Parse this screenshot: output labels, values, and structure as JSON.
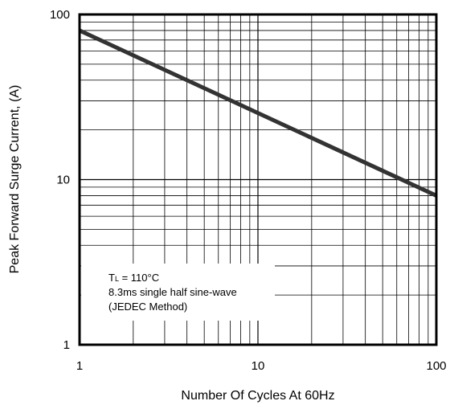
{
  "chart_data": {
    "type": "line",
    "xlabel": "Number Of Cycles At 60Hz",
    "ylabel": "Peak Forward Surge Current, (A)",
    "x_scale": "log",
    "y_scale": "log",
    "xlim": [
      1,
      100
    ],
    "ylim": [
      1,
      100
    ],
    "x_ticks": [
      "1",
      "10",
      "100"
    ],
    "y_ticks": [
      "1",
      "10",
      "100"
    ],
    "grid": true,
    "series": [
      {
        "x": [
          1,
          100
        ],
        "y": [
          80,
          8.0
        ],
        "color": "#333333"
      }
    ],
    "annotation": {
      "line1_main": "T",
      "line1_sub": "L",
      "line1_rest": " = 110°C",
      "line2": "8.3ms single half sine-wave",
      "line3": "(JEDEC Method)"
    }
  }
}
